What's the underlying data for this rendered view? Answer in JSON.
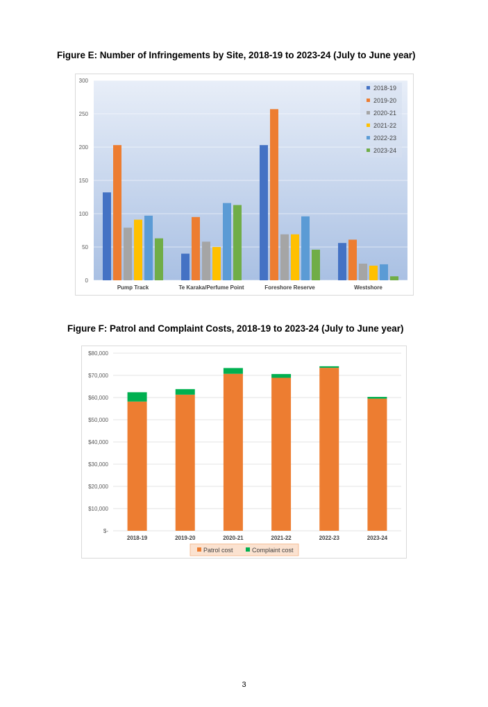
{
  "figures": {
    "e_title": "Figure E: Number of Infringements by Site, 2018-19 to 2023-24 (July to June year)",
    "f_title": "Figure F: Patrol and Complaint Costs, 2018-19 to 2023-24 (July to June year)"
  },
  "page_number": "3",
  "chart_data": [
    {
      "type": "bar",
      "title": "Figure E: Number of Infringements by Site, 2018-19 to 2023-24 (July to June year)",
      "categories": [
        "Pump Track",
        "Te Karaka/Perfume Point",
        "Foreshore Reserve",
        "Westshore"
      ],
      "series": [
        {
          "name": "2018-19",
          "color": "#4472c4",
          "values": [
            132,
            40,
            203,
            56
          ]
        },
        {
          "name": "2019-20",
          "color": "#ed7d31",
          "values": [
            203,
            95,
            257,
            61
          ]
        },
        {
          "name": "2020-21",
          "color": "#a5a5a5",
          "values": [
            79,
            58,
            69,
            25
          ]
        },
        {
          "name": "2021-22",
          "color": "#ffc000",
          "values": [
            91,
            50,
            69,
            22
          ]
        },
        {
          "name": "2022-23",
          "color": "#5b9bd5",
          "values": [
            97,
            116,
            96,
            24
          ]
        },
        {
          "name": "2023-24",
          "color": "#70ad47",
          "values": [
            63,
            113,
            46,
            6
          ]
        }
      ],
      "yticks": [
        "300",
        "250",
        "200",
        "150",
        "100",
        "50",
        "0"
      ],
      "ylim": [
        0,
        300
      ],
      "grid": true,
      "legend": "top-right"
    },
    {
      "type": "bar",
      "stacked": true,
      "title": "Figure F: Patrol and Complaint Costs, 2018-19 to 2023-24 (July to June year)",
      "categories": [
        "2018-19",
        "2019-20",
        "2020-21",
        "2021-22",
        "2022-23",
        "2023-24"
      ],
      "series": [
        {
          "name": "Patrol cost",
          "color": "#ed7d31",
          "values": [
            58200,
            61300,
            70700,
            68900,
            73400,
            59500
          ]
        },
        {
          "name": "Complaint cost",
          "color": "#00b050",
          "values": [
            4200,
            2500,
            2600,
            1700,
            700,
            800
          ]
        }
      ],
      "yticks": [
        "$80,000",
        "$70,000",
        "$60,000",
        "$50,000",
        "$40,000",
        "$30,000",
        "$20,000",
        "$10,000",
        "$-"
      ],
      "ylim": [
        0,
        80000
      ],
      "grid": true,
      "legend": "bottom"
    }
  ]
}
